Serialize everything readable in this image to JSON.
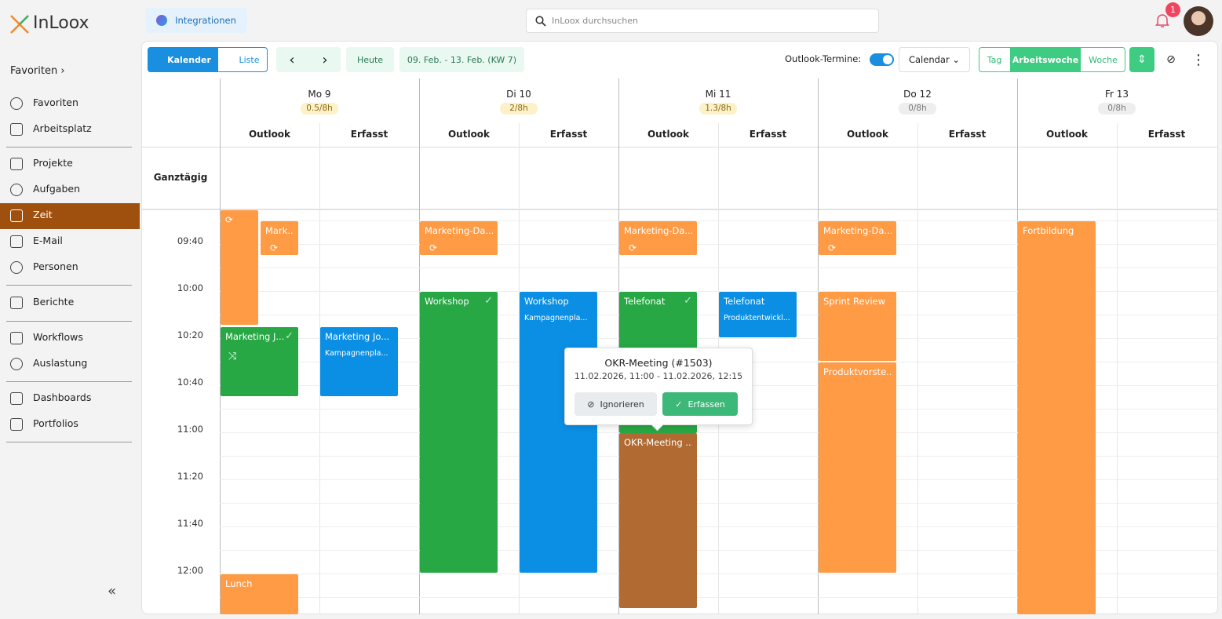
{
  "header": {
    "logo": "InLoox",
    "integrations": "Integrationen",
    "search_placeholder": "InLoox durchsuchen",
    "notification_count": 1
  },
  "sidebar": {
    "favorites_heading": "Favoriten",
    "items": [
      "Favoriten",
      "Arbeitsplatz",
      "Projekte",
      "Aufgaben",
      "Zeit",
      "E-Mail",
      "Personen",
      "Berichte",
      "Workflows",
      "Auslastung",
      "Dashboards",
      "Portfolios"
    ]
  },
  "toolbar": {
    "calendar": "Kalender",
    "list": "Liste",
    "today": "Heute",
    "range": "09. Feb. - 13. Feb. (KW 7)",
    "outlook_label": "Outlook-Termine:",
    "source": "Calendar",
    "views": [
      "Tag",
      "Arbeitswoche",
      "Woche"
    ]
  },
  "calendar": {
    "days": [
      {
        "name": "Mo 9",
        "hours": "0.5/8h"
      },
      {
        "name": "Di 10",
        "hours": "2/8h"
      },
      {
        "name": "Mi 11",
        "hours": "1.3/8h"
      },
      {
        "name": "Do 12",
        "hours": "0/8h"
      },
      {
        "name": "Fr 13",
        "hours": "0/8h"
      }
    ],
    "subcolumns": [
      "Outlook",
      "Erfasst"
    ],
    "all_day": "Ganztägig",
    "times": [
      "09:40",
      "10:00",
      "10:20",
      "10:40",
      "11:00",
      "11:20",
      "11:40",
      "12:00"
    ],
    "events": [
      {
        "title": "Mark..."
      },
      {
        "title": "Marketing J..."
      },
      {
        "title": "Lunch"
      },
      {
        "title": "Marketing Jo...",
        "subtitle": "Kampagnenpla..."
      },
      {
        "title": "Marketing-Da..."
      },
      {
        "title": "Workshop"
      },
      {
        "title": "Workshop",
        "subtitle": "Kampagnenpla..."
      },
      {
        "title": "Marketing-Da..."
      },
      {
        "title": "Telefonat"
      },
      {
        "title": "OKR-Meeting ..."
      },
      {
        "title": "Telefonat",
        "subtitle": "Produktentwickl..."
      },
      {
        "title": "Marketing-Da..."
      },
      {
        "title": "Sprint Review"
      },
      {
        "title": "Produktvorste..."
      },
      {
        "title": "Fortbildung"
      }
    ]
  },
  "popup": {
    "title": "OKR-Meeting (#1503)",
    "time": "11.02.2026, 11:00 - 11.02.2026, 12:15",
    "ignore": "Ignorieren",
    "capture": "Erfassen"
  }
}
